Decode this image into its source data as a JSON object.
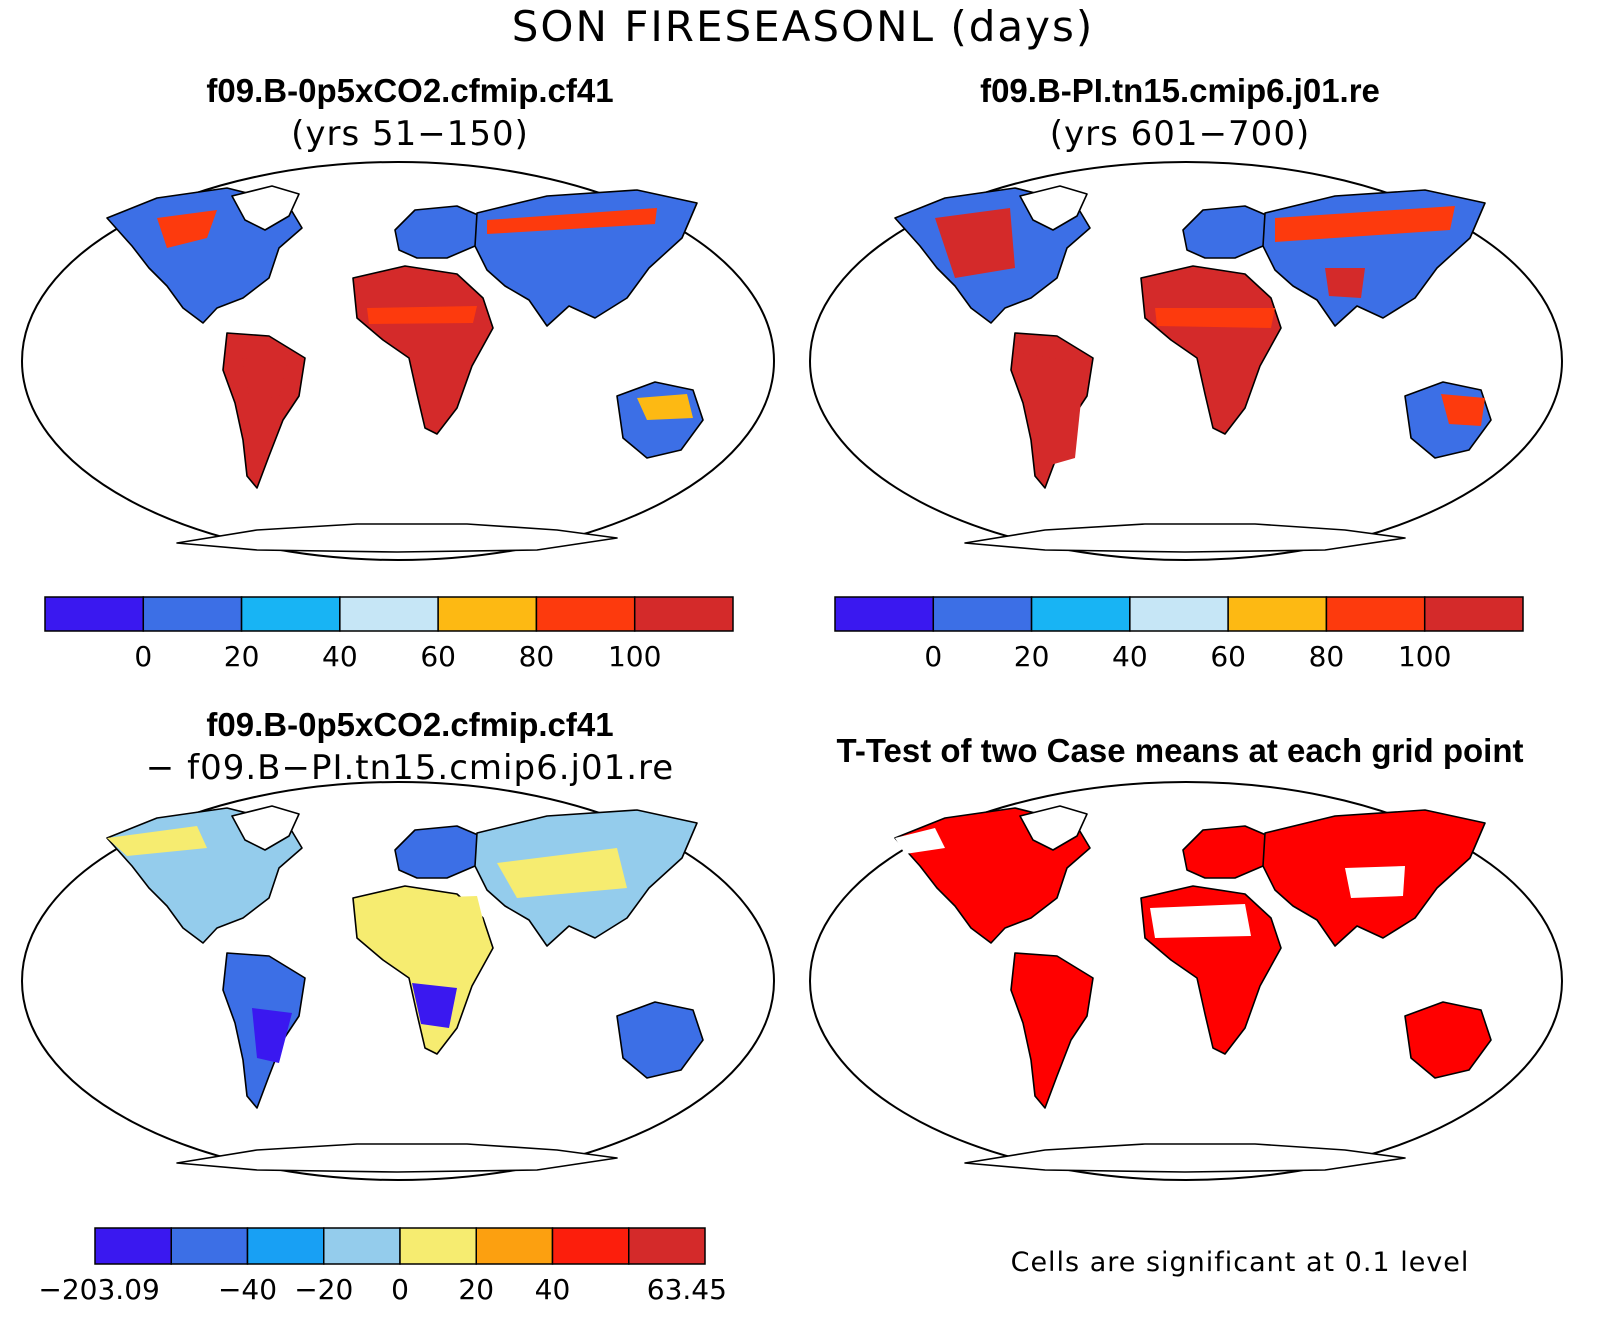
{
  "figure": {
    "title": "SON FIRESEASONL (days)"
  },
  "panels": [
    {
      "id": "case1",
      "title": "f09.B-0p5xCO2.cfmip.cf41",
      "subtitle": "(yrs 51−150)",
      "colorbar": {
        "colors": [
          "#3a18f0",
          "#3c6fe6",
          "#18b4f4",
          "#c6e6f6",
          "#fdb913",
          "#fd3a0d",
          "#d42a2a"
        ],
        "labels": [
          "0",
          "20",
          "40",
          "60",
          "80",
          "100"
        ]
      }
    },
    {
      "id": "case2",
      "title": "f09.B-PI.tn15.cmip6.j01.re",
      "subtitle": "(yrs 601−700)",
      "colorbar": {
        "colors": [
          "#3a18f0",
          "#3c6fe6",
          "#18b4f4",
          "#c6e6f6",
          "#fdb913",
          "#fd3a0d",
          "#d42a2a"
        ],
        "labels": [
          "0",
          "20",
          "40",
          "60",
          "80",
          "100"
        ]
      }
    },
    {
      "id": "diff",
      "title": "f09.B-0p5xCO2.cfmip.cf41",
      "subtitle": "− f09.B−PI.tn15.cmip6.j01.re",
      "colorbar": {
        "colors": [
          "#3a18f0",
          "#3c6fe6",
          "#18a0f4",
          "#94ccec",
          "#f6ec70",
          "#fca010",
          "#fc1e0c",
          "#d42a2a"
        ],
        "labels": [
          "−203.09",
          "−40",
          "−20",
          "0",
          "20",
          "40",
          "63.45"
        ]
      }
    },
    {
      "id": "ttest",
      "title": "T-Test of two Case means at each grid point",
      "note": "Cells are significant at 0.1 level",
      "sig_color": "#ff0000"
    }
  ]
}
